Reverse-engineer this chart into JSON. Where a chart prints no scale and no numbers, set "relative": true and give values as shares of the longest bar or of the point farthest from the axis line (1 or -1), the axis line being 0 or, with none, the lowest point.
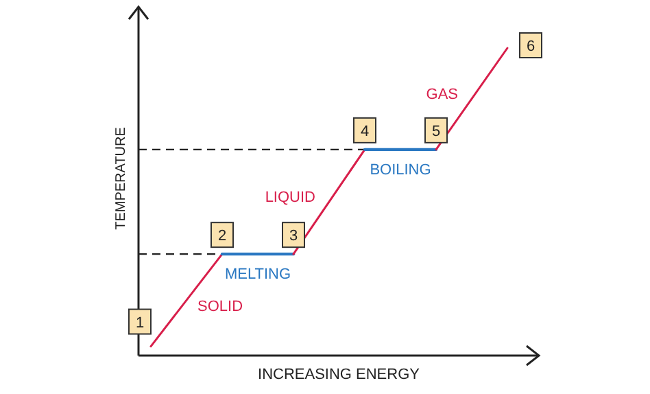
{
  "chart_data": {
    "type": "line",
    "relative": true,
    "categories": [
      null,
      null,
      null,
      null,
      null,
      null
    ],
    "xlabel": "INCREASING ENERGY",
    "ylabel": "TEMPERATURE",
    "series": [
      {
        "name": "SOLID",
        "color": "#d81e4a",
        "values": [
          0.03,
          0.33,
          null,
          null,
          null,
          null
        ]
      },
      {
        "name": "MELTING",
        "color": "#2a78c2",
        "values": [
          null,
          0.33,
          0.33,
          null,
          null,
          null
        ]
      },
      {
        "name": "LIQUID",
        "color": "#d81e4a",
        "values": [
          null,
          null,
          0.33,
          0.67,
          null,
          null
        ]
      },
      {
        "name": "BOILING",
        "color": "#2a78c2",
        "values": [
          null,
          null,
          null,
          0.67,
          0.67,
          null
        ]
      },
      {
        "name": "GAS",
        "color": "#d81e4a",
        "values": [
          null,
          null,
          null,
          null,
          0.67,
          1
        ]
      }
    ],
    "ref_lines": [
      {
        "axis": "y",
        "value": 0.33,
        "line_style": "dashed",
        "color": "#222222"
      },
      {
        "axis": "y",
        "value": 0.67,
        "line_style": "dashed",
        "color": "#222222"
      }
    ],
    "annotations": [
      "1",
      "2",
      "3",
      "4",
      "5",
      "6"
    ]
  }
}
